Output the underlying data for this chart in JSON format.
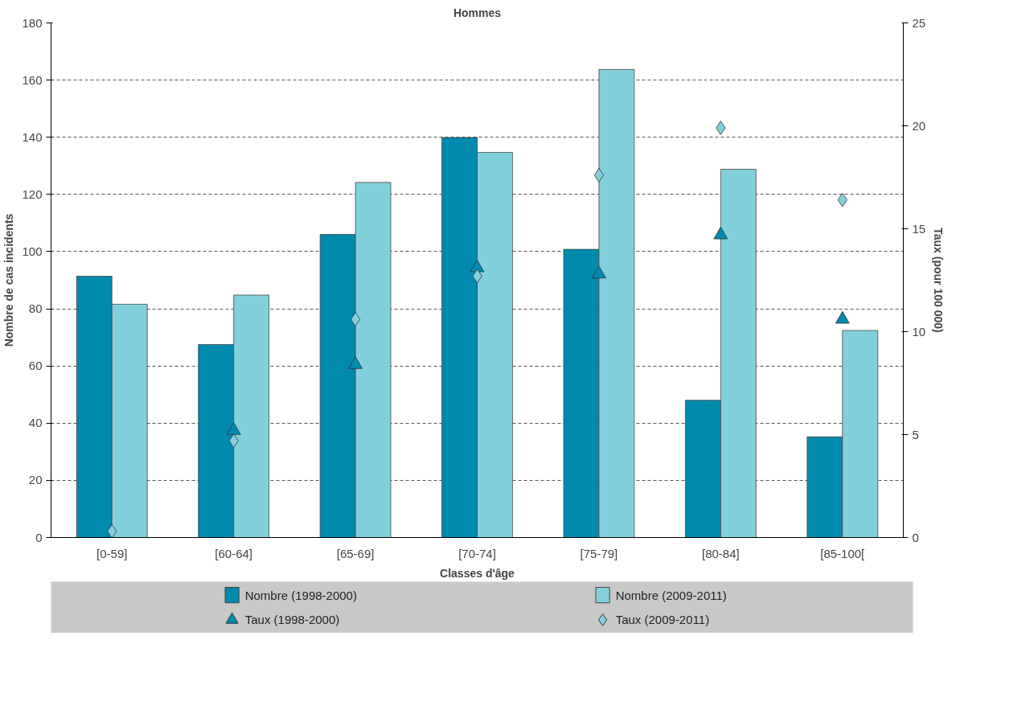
{
  "chart_data": {
    "type": "bar",
    "title": "Hommes",
    "xlabel": "Classes d'âge",
    "ylabel": "Nombre de cas incidents",
    "y2label": "Taux (pour 100 000)",
    "categories": [
      "[0-59]",
      "[60-64]",
      "[65-69]",
      "[70-74]",
      "[75-79]",
      "[80-84]",
      "[85-100["
    ],
    "series": [
      {
        "name": "Nombre (1998-2000)",
        "color": "#008aad",
        "values": [
          91.4,
          67.5,
          106,
          139.9,
          100.8,
          48,
          35.2
        ]
      },
      {
        "name": "Nombre  (2009-2011)",
        "color": "#82d0dc",
        "values": [
          81.6,
          84.8,
          124.2,
          134.7,
          163.7,
          128.8,
          72.4
        ]
      },
      {
        "name": "Taux (1998-2000)",
        "type": "scatter",
        "axis": "y2",
        "marker": "triangle",
        "color": "#008aad",
        "values": [
          null,
          5.2,
          8.4,
          13.1,
          12.8,
          14.7,
          10.6
        ]
      },
      {
        "name": "Taux (2009-2011)",
        "type": "scatter",
        "axis": "y2",
        "marker": "diamond",
        "color": "#82d0dc",
        "values": [
          0.3,
          4.7,
          10.6,
          12.7,
          17.6,
          19.9,
          16.4
        ]
      }
    ],
    "ylim": [
      0,
      180
    ],
    "yticks": [
      0,
      20,
      40,
      60,
      80,
      100,
      120,
      140,
      160,
      180
    ],
    "y2lim": [
      0,
      25
    ],
    "y2ticks": [
      0,
      5,
      10,
      15,
      20,
      25
    ],
    "grid": "y",
    "legend": "bottom"
  }
}
